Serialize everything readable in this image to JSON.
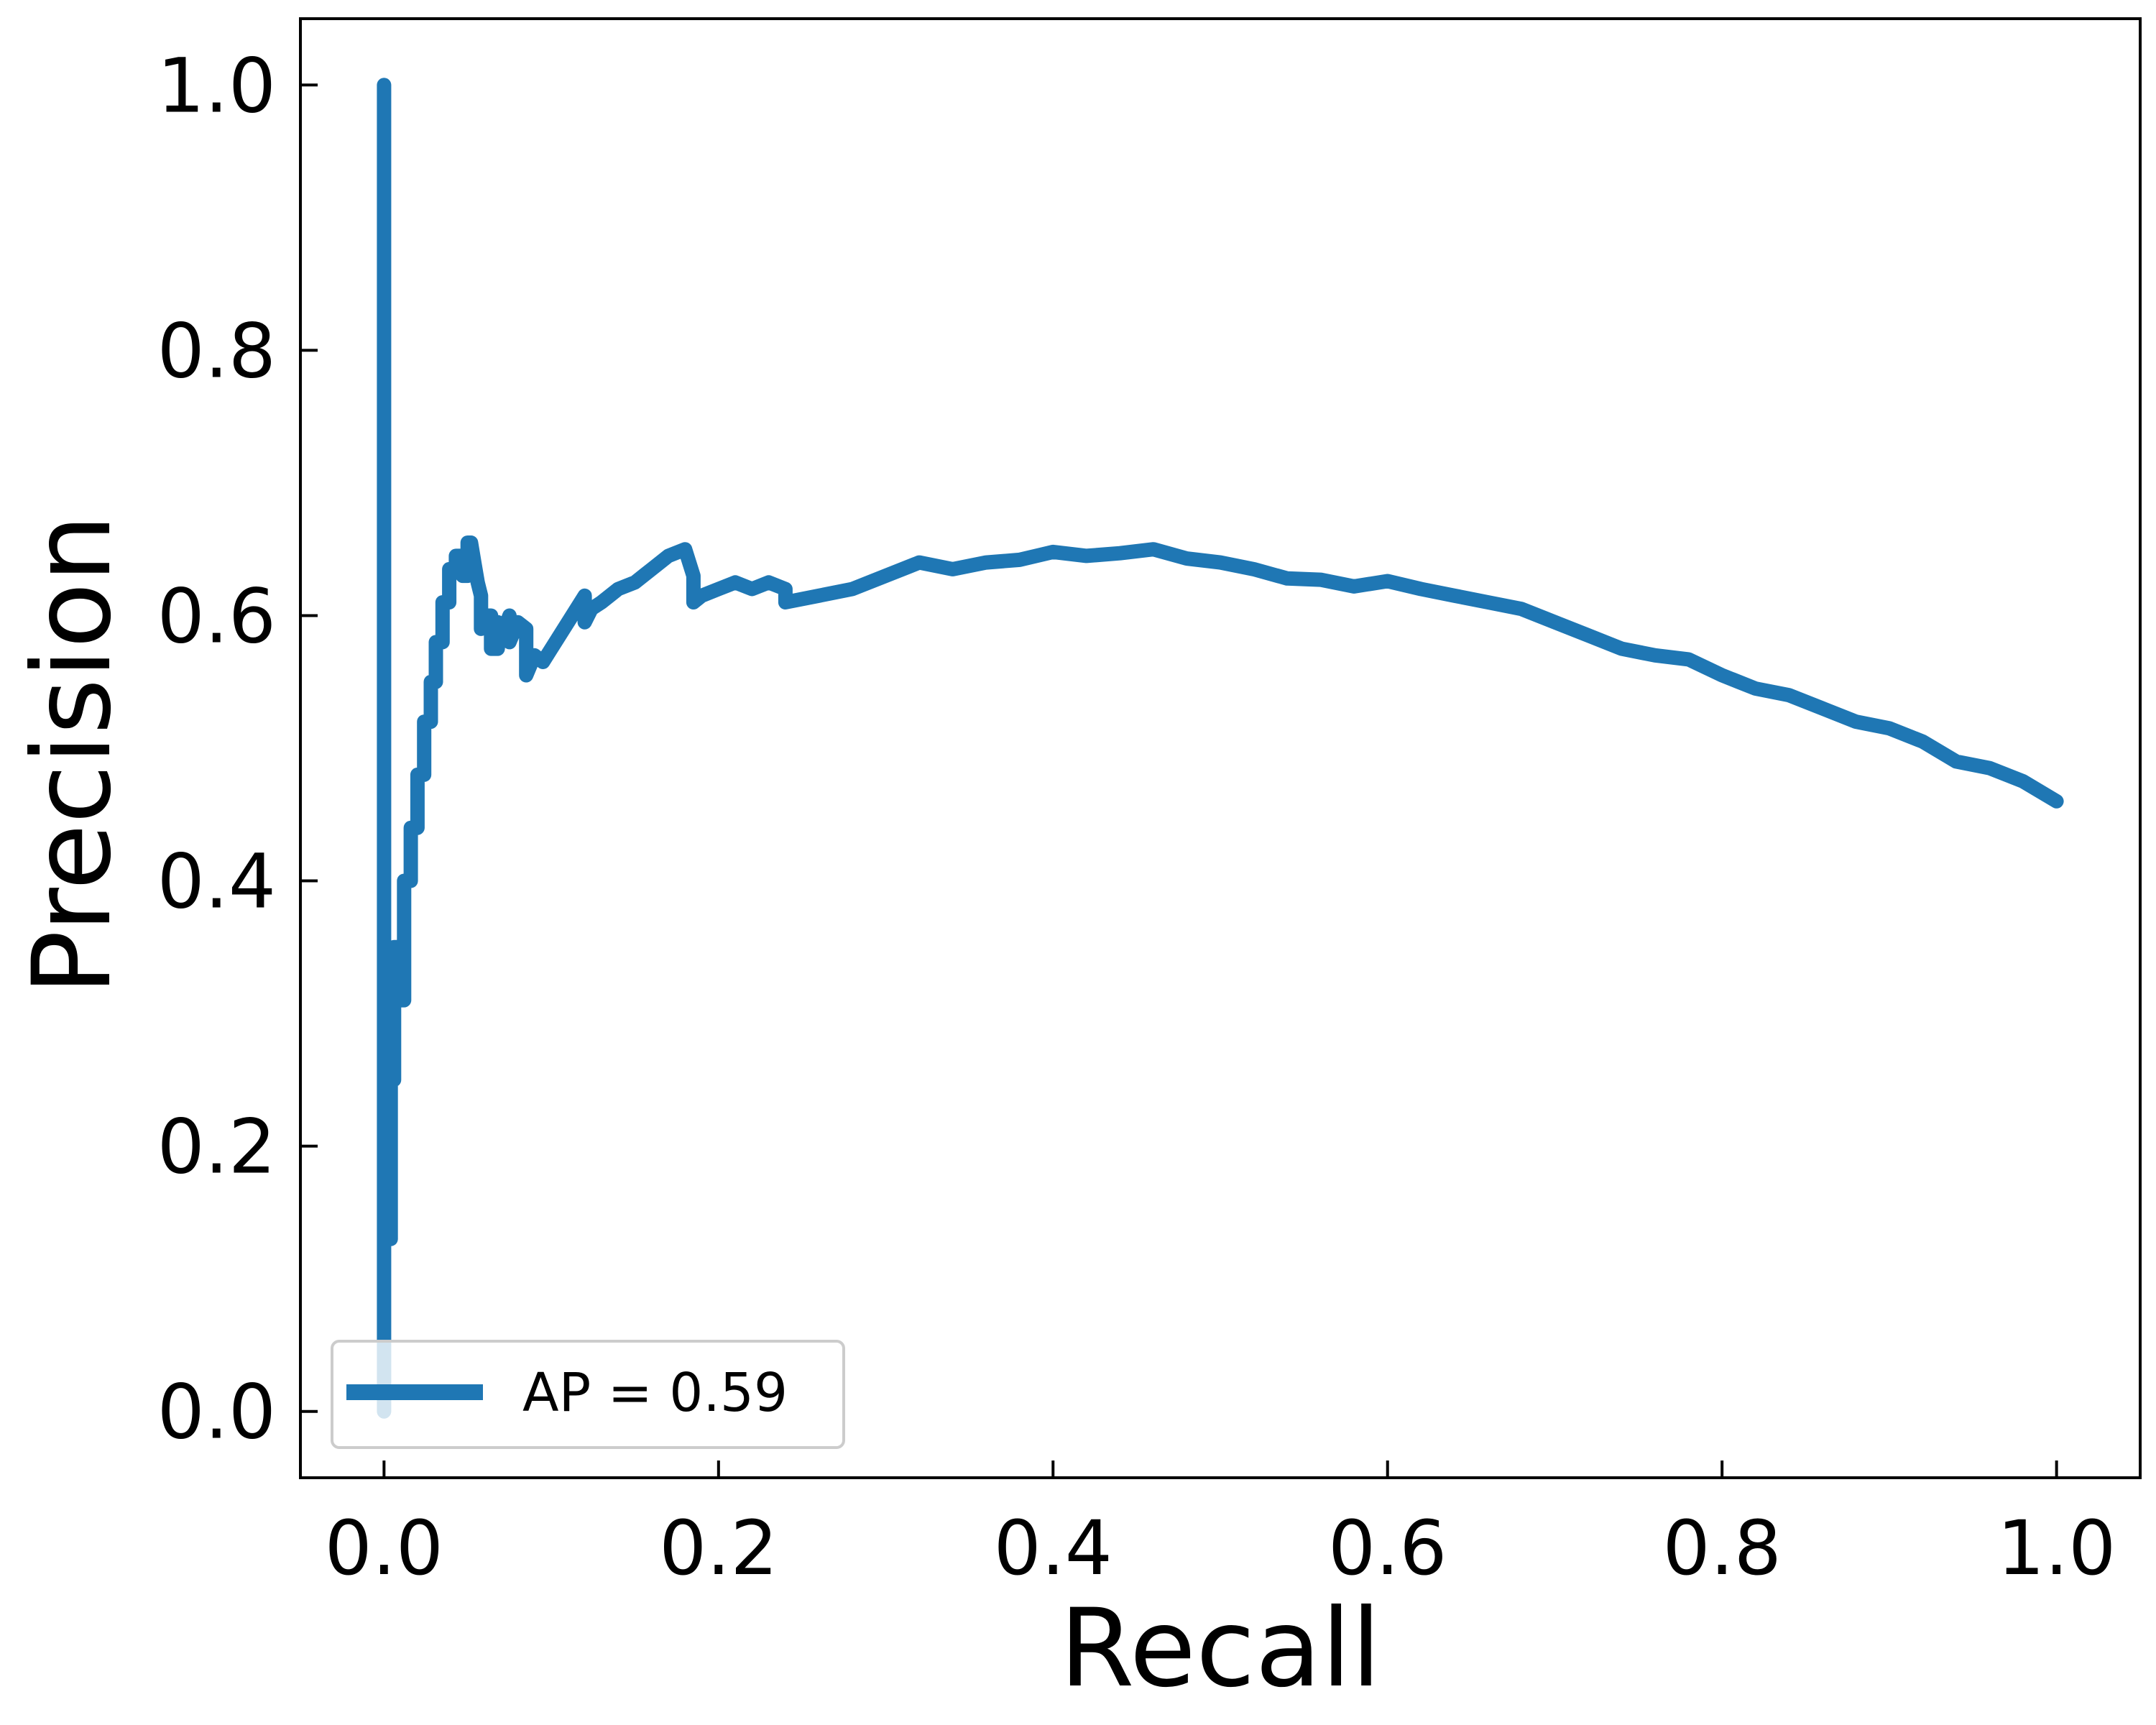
{
  "chart_data": {
    "type": "line",
    "title": "",
    "xlabel": "Recall",
    "ylabel": "Precision",
    "xlim": [
      -0.05,
      1.05
    ],
    "ylim": [
      -0.05,
      1.05
    ],
    "xticks": [
      0.0,
      0.2,
      0.4,
      0.6,
      0.8,
      1.0
    ],
    "yticks": [
      0.0,
      0.2,
      0.4,
      0.6,
      0.8,
      1.0
    ],
    "xtick_labels": [
      "0.0",
      "0.2",
      "0.4",
      "0.6",
      "0.8",
      "1.0"
    ],
    "ytick_labels": [
      "0.0",
      "0.2",
      "0.4",
      "0.6",
      "0.8",
      "1.0"
    ],
    "grid": false,
    "legend": {
      "placement": "lower-left",
      "entries": [
        "AP = 0.59"
      ]
    },
    "colors": {
      "series": "#1f77b4",
      "axes": "#000000",
      "legend_border": "#cccccc"
    },
    "series": [
      {
        "name": "AP = 0.59",
        "x": [
          0.0,
          0.0,
          0.0,
          0.0,
          0.002,
          0.002,
          0.004,
          0.004,
          0.006,
          0.006,
          0.008,
          0.008,
          0.012,
          0.012,
          0.016,
          0.016,
          0.02,
          0.02,
          0.024,
          0.024,
          0.028,
          0.028,
          0.031,
          0.031,
          0.035,
          0.035,
          0.039,
          0.039,
          0.043,
          0.043,
          0.047,
          0.047,
          0.05,
          0.05,
          0.052,
          0.054,
          0.056,
          0.058,
          0.058,
          0.06,
          0.064,
          0.064,
          0.068,
          0.068,
          0.072,
          0.075,
          0.075,
          0.08,
          0.085,
          0.085,
          0.09,
          0.095,
          0.1,
          0.12,
          0.12,
          0.124,
          0.13,
          0.14,
          0.15,
          0.16,
          0.17,
          0.18,
          0.185,
          0.185,
          0.19,
          0.2,
          0.21,
          0.22,
          0.23,
          0.24,
          0.24,
          0.26,
          0.28,
          0.3,
          0.32,
          0.34,
          0.36,
          0.38,
          0.4,
          0.42,
          0.44,
          0.46,
          0.48,
          0.5,
          0.52,
          0.54,
          0.56,
          0.58,
          0.6,
          0.62,
          0.64,
          0.66,
          0.68,
          0.7,
          0.72,
          0.74,
          0.76,
          0.78,
          0.8,
          0.82,
          0.84,
          0.86,
          0.88,
          0.9,
          0.92,
          0.94,
          0.96,
          0.98,
          1.0
        ],
        "y": [
          0.0,
          1.0,
          0.0,
          0.33,
          0.33,
          0.13,
          0.13,
          0.25,
          0.25,
          0.35,
          0.35,
          0.31,
          0.31,
          0.4,
          0.4,
          0.44,
          0.44,
          0.48,
          0.48,
          0.52,
          0.52,
          0.55,
          0.55,
          0.58,
          0.58,
          0.61,
          0.61,
          0.635,
          0.635,
          0.645,
          0.645,
          0.63,
          0.63,
          0.655,
          0.655,
          0.64,
          0.625,
          0.615,
          0.59,
          0.6,
          0.6,
          0.575,
          0.575,
          0.595,
          0.59,
          0.6,
          0.58,
          0.595,
          0.59,
          0.555,
          0.57,
          0.565,
          0.575,
          0.615,
          0.595,
          0.605,
          0.61,
          0.62,
          0.625,
          0.635,
          0.645,
          0.65,
          0.63,
          0.61,
          0.615,
          0.62,
          0.625,
          0.62,
          0.625,
          0.62,
          0.61,
          0.615,
          0.62,
          0.63,
          0.64,
          0.635,
          0.64,
          0.642,
          0.648,
          0.645,
          0.647,
          0.65,
          0.643,
          0.64,
          0.635,
          0.628,
          0.627,
          0.622,
          0.626,
          0.62,
          0.615,
          0.61,
          0.605,
          0.595,
          0.585,
          0.575,
          0.57,
          0.567,
          0.555,
          0.545,
          0.54,
          0.53,
          0.52,
          0.515,
          0.505,
          0.49,
          0.485,
          0.475,
          0.46
        ]
      }
    ]
  }
}
